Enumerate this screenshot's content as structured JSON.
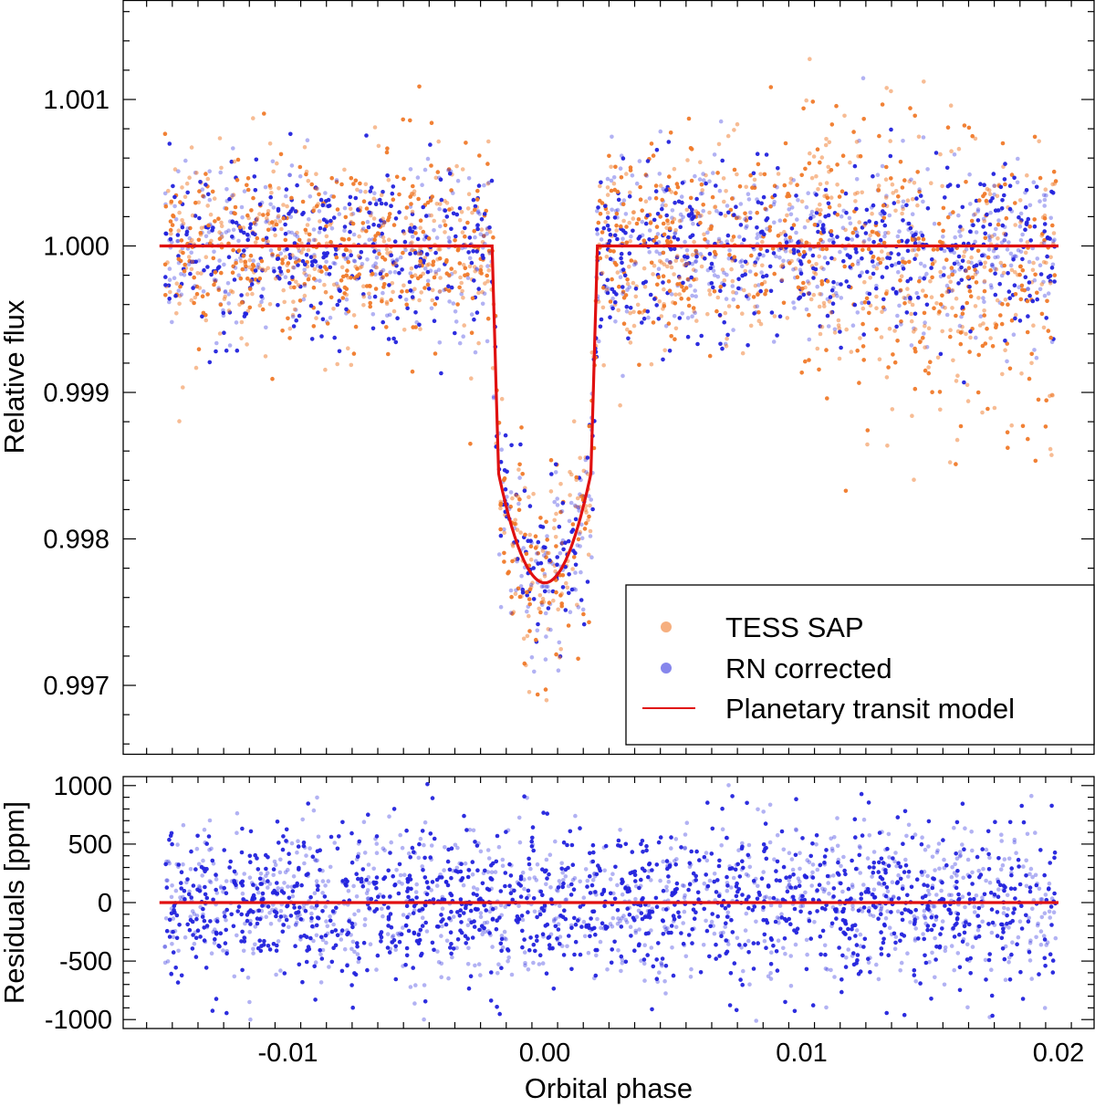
{
  "chart_data": [
    {
      "id": "flux-panel",
      "type": "scatter",
      "title": "",
      "xlabel": "",
      "ylabel": "Relative flux",
      "xlim": [
        -0.015,
        0.02
      ],
      "ylim": [
        0.99645,
        1.00165
      ],
      "x_ticks": [
        -0.01,
        0.0,
        0.01,
        0.02
      ],
      "y_ticks": [
        0.997,
        0.998,
        0.999,
        1.0,
        1.001
      ],
      "y_tick_labels": [
        "0.997",
        "0.998",
        "0.999",
        "1.000",
        "1.001"
      ],
      "legend": {
        "position": "bottom-right",
        "entries": [
          "TESS SAP",
          "RN corrected",
          "Planetary transit model"
        ]
      },
      "series": [
        {
          "name": "TESS SAP",
          "kind": "points",
          "color": "#f07a2a",
          "x_range": [
            -0.0148,
            0.0199
          ],
          "out_of_transit_level": 1.0,
          "scatter_std": 0.00035,
          "note": "scatter grows after phase 0.01; many points drop to ~0.9978-0.9985 near phase 0.013-0.02"
        },
        {
          "name": "RN corrected",
          "kind": "points",
          "color": "#2222dd",
          "x_range": [
            -0.0148,
            0.0199
          ],
          "out_of_transit_level": 1.0,
          "scatter_std": 0.0003
        },
        {
          "name": "Planetary transit model",
          "kind": "line",
          "color": "#e01010",
          "x": [
            -0.015,
            -0.00205,
            -0.00195,
            -0.0018,
            -0.0015,
            -0.001,
            -0.0005,
            0.0,
            0.0005,
            0.001,
            0.0015,
            0.0018,
            0.00195,
            0.00205,
            0.02
          ],
          "y": [
            1.0,
            1.0,
            0.999,
            0.99845,
            0.99815,
            0.99793,
            0.99779,
            0.9977,
            0.99779,
            0.99793,
            0.99815,
            0.99845,
            0.999,
            1.0,
            1.0
          ]
        }
      ]
    },
    {
      "id": "residuals-panel",
      "type": "scatter",
      "title": "",
      "xlabel": "Orbital phase",
      "ylabel": "Residuals [ppm]",
      "xlim": [
        -0.016,
        0.0215
      ],
      "ylim": [
        -1050,
        1090
      ],
      "x_ticks": [
        -0.01,
        0.0,
        0.01,
        0.02
      ],
      "x_tick_labels": [
        "-0.01",
        "0.00",
        "0.01",
        "0.02"
      ],
      "y_ticks": [
        -1000,
        -500,
        0,
        500,
        1000
      ],
      "y_tick_labels": [
        "-1000",
        "-500",
        "0",
        "500",
        "1000"
      ],
      "series": [
        {
          "name": "RN corrected residuals",
          "kind": "points",
          "color": "#2222dd",
          "x_range": [
            -0.0148,
            0.0199
          ],
          "scatter_std": 330
        },
        {
          "name": "Zero line",
          "kind": "line",
          "color": "#e01010",
          "x": [
            -0.015,
            0.02
          ],
          "y": [
            0,
            0
          ]
        }
      ]
    }
  ]
}
